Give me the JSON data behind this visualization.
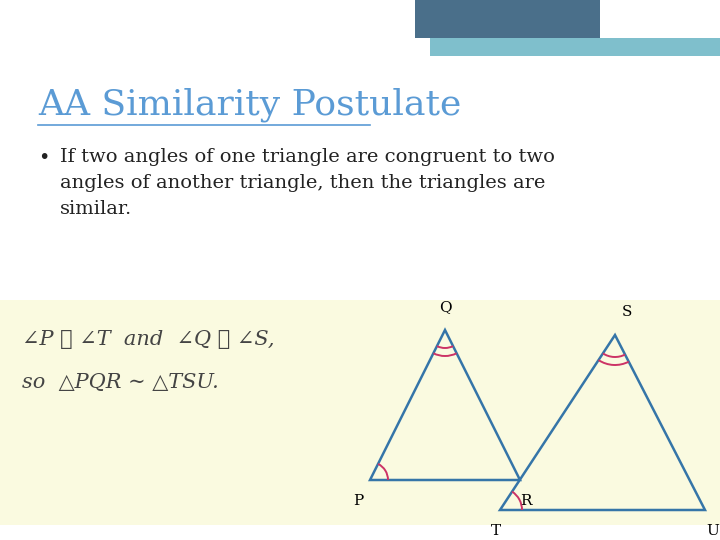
{
  "title": "AA Similarity Postulate",
  "title_color": "#5B9BD5",
  "bg_color": "#FFFFFF",
  "header_bar_color1": "#4A6F8A",
  "header_bar_color2": "#7FBFCC",
  "bullet_text_line1": "If two angles of one triangle are congruent to two",
  "bullet_text_line2": "angles of another triangle, then the triangles are",
  "bullet_text_line3": "similar.",
  "bullet_color": "#222222",
  "formula_bg": "#FAFAE0",
  "tri_color": "#3575A8",
  "arc_color": "#CC3366",
  "font_color_formula": "#444444"
}
